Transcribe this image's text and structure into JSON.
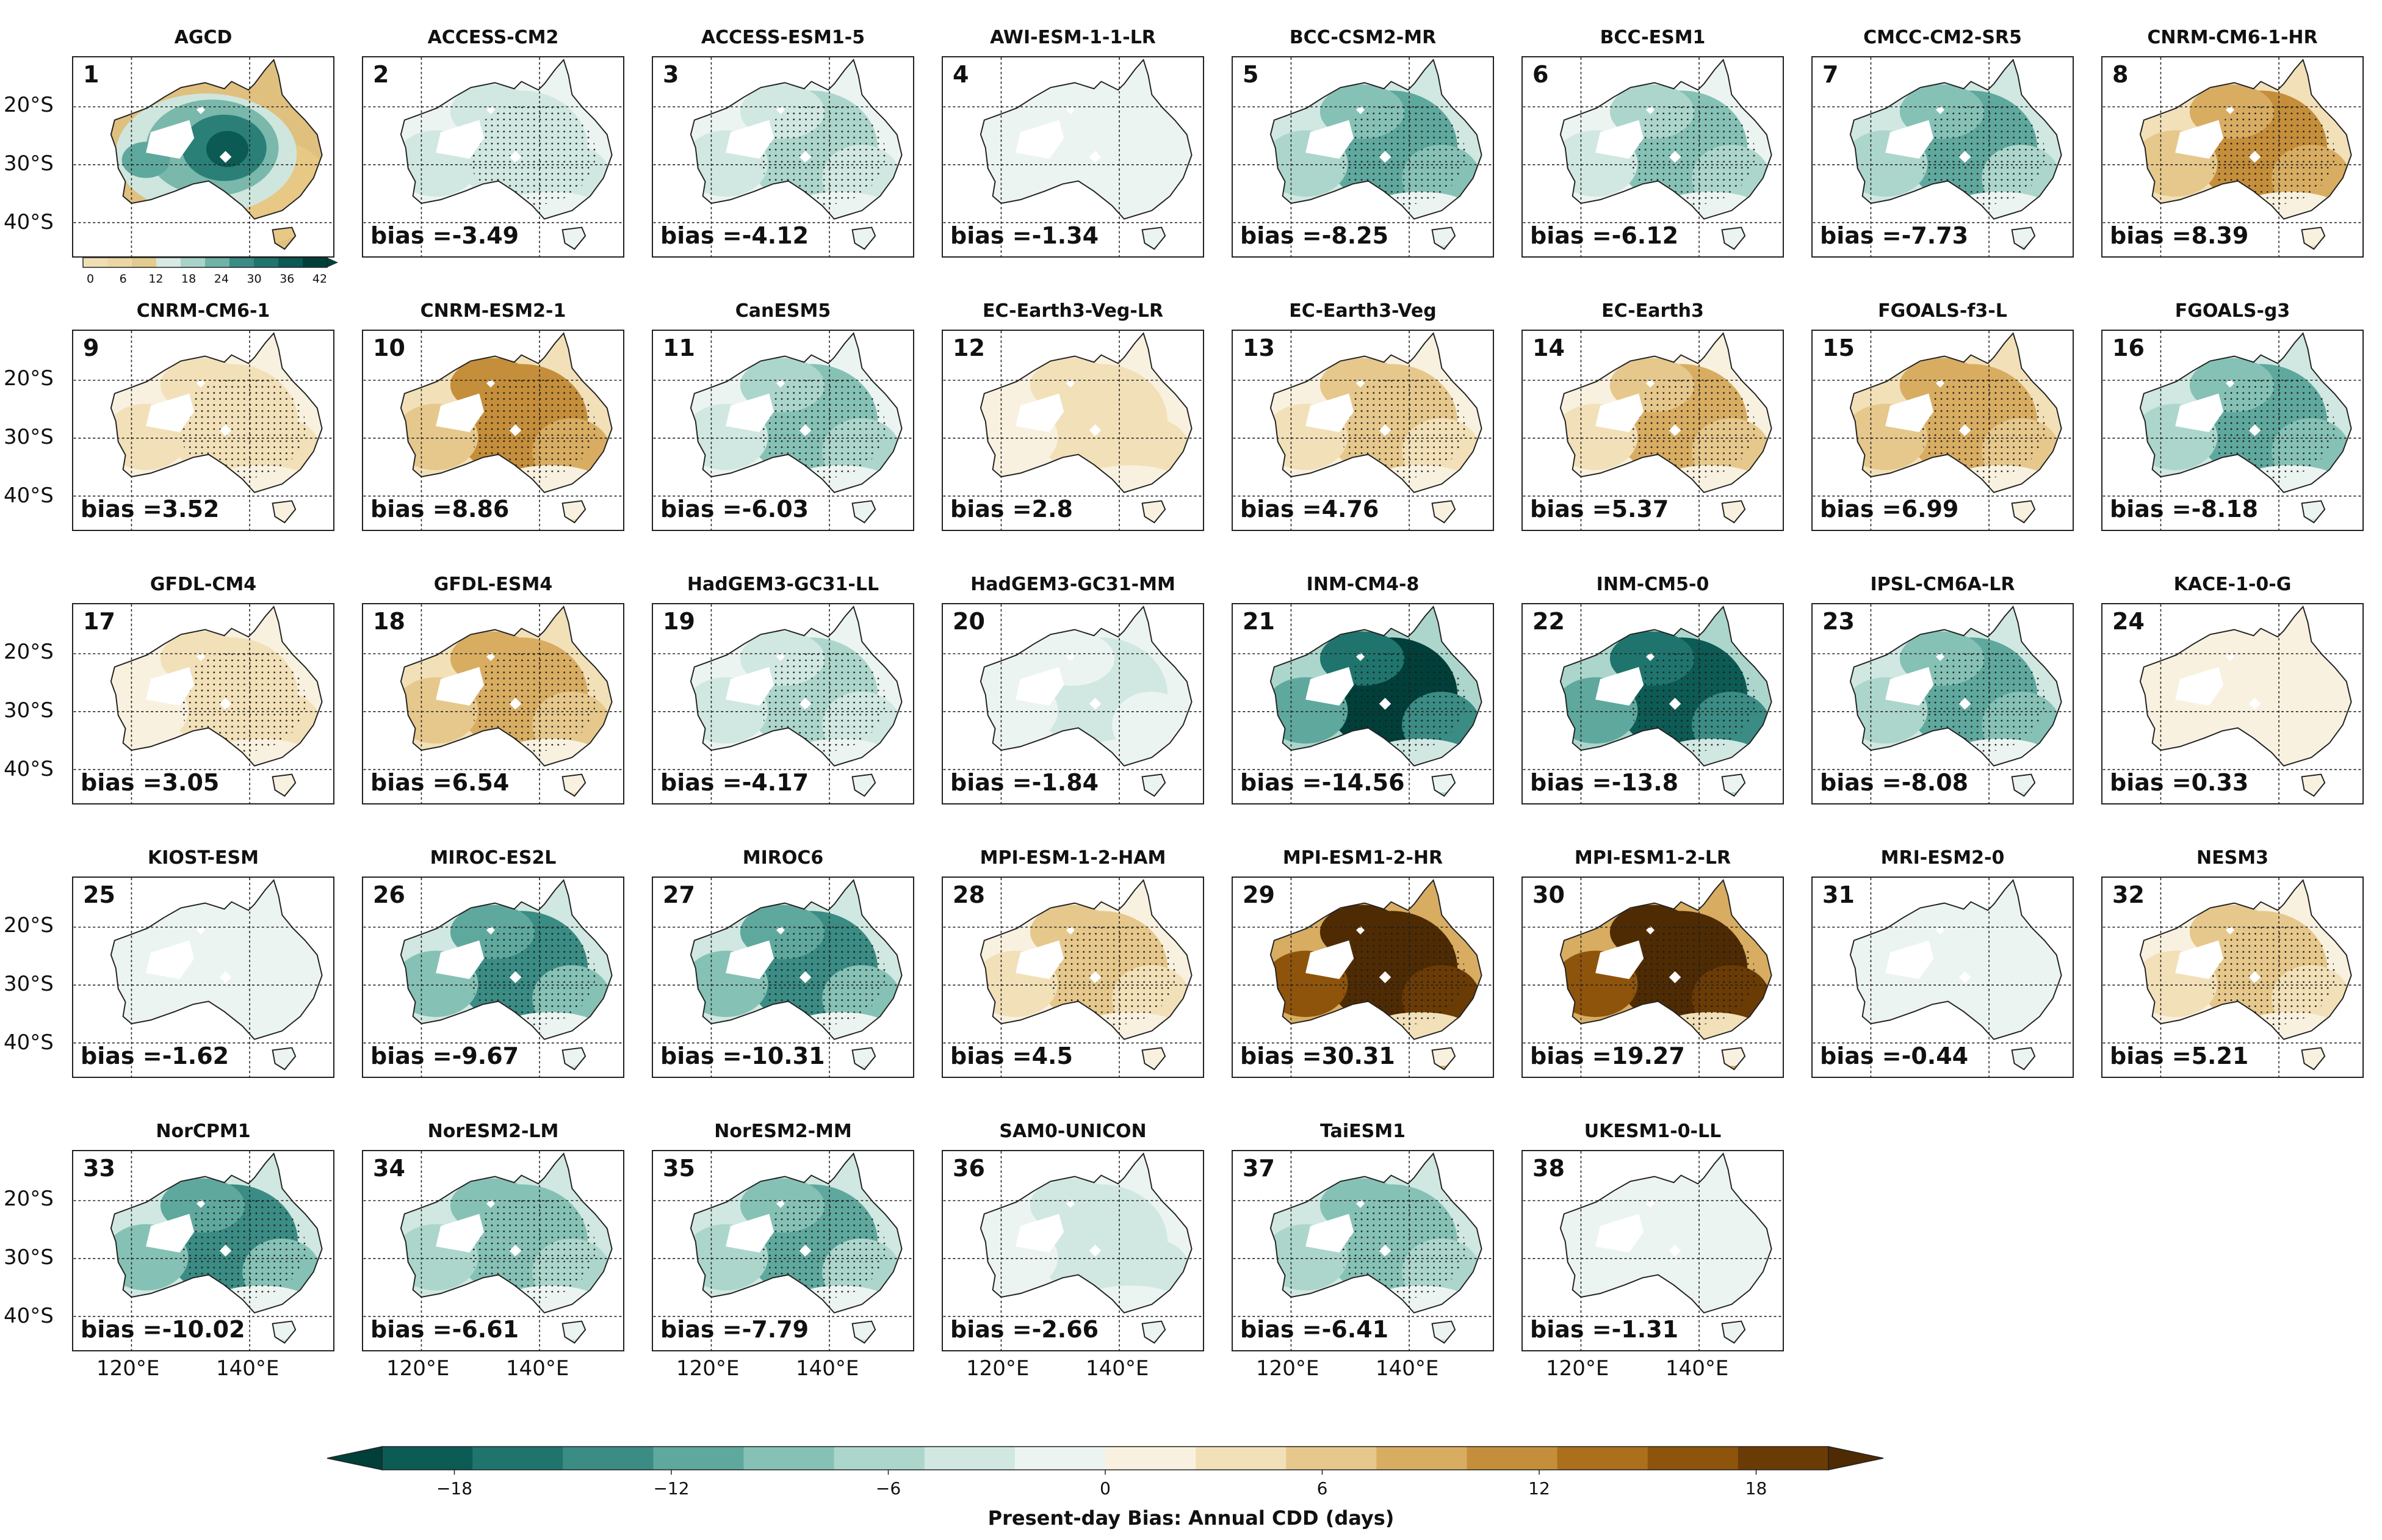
{
  "lat_labels": [
    "20°S",
    "30°S",
    "40°S"
  ],
  "lon_labels": [
    "120°E",
    "140°E"
  ],
  "observed": {
    "number": "1",
    "name": "AGCD",
    "colorbar_ticks": [
      "0",
      "6",
      "12",
      "18",
      "24",
      "30",
      "36",
      "42"
    ]
  },
  "bias_prefix": "bias =",
  "models": [
    {
      "number": "2",
      "name": "ACCESS-CM2",
      "bias": "-3.49"
    },
    {
      "number": "3",
      "name": "ACCESS-ESM1-5",
      "bias": "-4.12"
    },
    {
      "number": "4",
      "name": "AWI-ESM-1-1-LR",
      "bias": "-1.34"
    },
    {
      "number": "5",
      "name": "BCC-CSM2-MR",
      "bias": "-8.25"
    },
    {
      "number": "6",
      "name": "BCC-ESM1",
      "bias": "-6.12"
    },
    {
      "number": "7",
      "name": "CMCC-CM2-SR5",
      "bias": "-7.73"
    },
    {
      "number": "8",
      "name": "CNRM-CM6-1-HR",
      "bias": "8.39"
    },
    {
      "number": "9",
      "name": "CNRM-CM6-1",
      "bias": "3.52"
    },
    {
      "number": "10",
      "name": "CNRM-ESM2-1",
      "bias": "8.86"
    },
    {
      "number": "11",
      "name": "CanESM5",
      "bias": "-6.03"
    },
    {
      "number": "12",
      "name": "EC-Earth3-Veg-LR",
      "bias": "2.8"
    },
    {
      "number": "13",
      "name": "EC-Earth3-Veg",
      "bias": "4.76"
    },
    {
      "number": "14",
      "name": "EC-Earth3",
      "bias": "5.37"
    },
    {
      "number": "15",
      "name": "FGOALS-f3-L",
      "bias": "6.99"
    },
    {
      "number": "16",
      "name": "FGOALS-g3",
      "bias": "-8.18"
    },
    {
      "number": "17",
      "name": "GFDL-CM4",
      "bias": "3.05"
    },
    {
      "number": "18",
      "name": "GFDL-ESM4",
      "bias": "6.54"
    },
    {
      "number": "19",
      "name": "HadGEM3-GC31-LL",
      "bias": "-4.17"
    },
    {
      "number": "20",
      "name": "HadGEM3-GC31-MM",
      "bias": "-1.84"
    },
    {
      "number": "21",
      "name": "INM-CM4-8",
      "bias": "-14.56"
    },
    {
      "number": "22",
      "name": "INM-CM5-0",
      "bias": "-13.8"
    },
    {
      "number": "23",
      "name": "IPSL-CM6A-LR",
      "bias": "-8.08"
    },
    {
      "number": "24",
      "name": "KACE-1-0-G",
      "bias": "0.33"
    },
    {
      "number": "25",
      "name": "KIOST-ESM",
      "bias": "-1.62"
    },
    {
      "number": "26",
      "name": "MIROC-ES2L",
      "bias": "-9.67"
    },
    {
      "number": "27",
      "name": "MIROC6",
      "bias": "-10.31"
    },
    {
      "number": "28",
      "name": "MPI-ESM-1-2-HAM",
      "bias": "4.5"
    },
    {
      "number": "29",
      "name": "MPI-ESM1-2-HR",
      "bias": "30.31"
    },
    {
      "number": "30",
      "name": "MPI-ESM1-2-LR",
      "bias": "19.27"
    },
    {
      "number": "31",
      "name": "MRI-ESM2-0",
      "bias": "-0.44"
    },
    {
      "number": "32",
      "name": "NESM3",
      "bias": "5.21"
    },
    {
      "number": "33",
      "name": "NorCPM1",
      "bias": "-10.02"
    },
    {
      "number": "34",
      "name": "NorESM2-LM",
      "bias": "-6.61"
    },
    {
      "number": "35",
      "name": "NorESM2-MM",
      "bias": "-7.79"
    },
    {
      "number": "36",
      "name": "SAM0-UNICON",
      "bias": "-2.66"
    },
    {
      "number": "37",
      "name": "TaiESM1",
      "bias": "-6.41"
    },
    {
      "number": "38",
      "name": "UKESM1-0-LL",
      "bias": "-1.31"
    }
  ],
  "colorbar": {
    "label": "Present-day Bias: Annual CDD (days)",
    "ticks": [
      "−18",
      "−12",
      "−6",
      "0",
      "6",
      "12",
      "18"
    ],
    "colors": [
      "#01403a",
      "#0d5b55",
      "#1f756e",
      "#3a8c84",
      "#5fa89e",
      "#86c1b6",
      "#acd6cc",
      "#d0e8e1",
      "#ecf4f1",
      "#f9f1df",
      "#f2e0b8",
      "#e6c88c",
      "#d8ad62",
      "#c58e3a",
      "#ac6f1c",
      "#8e540c",
      "#6b3b05",
      "#4f2b03"
    ]
  }
}
